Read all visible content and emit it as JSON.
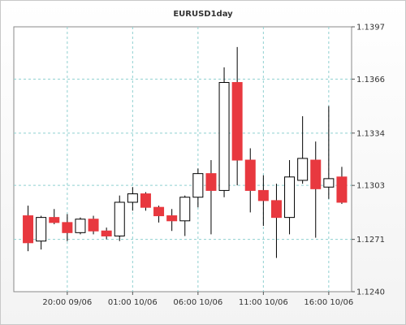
{
  "chart_data": {
    "type": "candlestick",
    "title": "EURUSD1day",
    "up_color": "#ffffff",
    "down_color": "#e8383f",
    "grid_color": "#8fd0d0",
    "grid": true,
    "ylim": [
      1.124,
      1.1397
    ],
    "yticks": [
      "1.1240",
      "1.1271",
      "1.1303",
      "1.1334",
      "1.1366",
      "1.1397"
    ],
    "xticks": [
      {
        "index": 3.5,
        "label": "20:00 09/06"
      },
      {
        "index": 8.5,
        "label": "01:00 10/06"
      },
      {
        "index": 13.5,
        "label": "06:00 10/06"
      },
      {
        "index": 18.5,
        "label": "11:00 10/06"
      },
      {
        "index": 23.5,
        "label": "16:00 10/06"
      }
    ],
    "candles": [
      {
        "o": 1.1285,
        "h": 1.1291,
        "l": 1.1264,
        "c": 1.1269
      },
      {
        "o": 1.127,
        "h": 1.1285,
        "l": 1.1265,
        "c": 1.1284
      },
      {
        "o": 1.1284,
        "h": 1.1289,
        "l": 1.128,
        "c": 1.1281
      },
      {
        "o": 1.1281,
        "h": 1.1286,
        "l": 1.127,
        "c": 1.1275
      },
      {
        "o": 1.1275,
        "h": 1.1284,
        "l": 1.1274,
        "c": 1.1283
      },
      {
        "o": 1.1283,
        "h": 1.1285,
        "l": 1.1274,
        "c": 1.1276
      },
      {
        "o": 1.1276,
        "h": 1.1278,
        "l": 1.1271,
        "c": 1.1273
      },
      {
        "o": 1.1273,
        "h": 1.1297,
        "l": 1.127,
        "c": 1.1293
      },
      {
        "o": 1.1293,
        "h": 1.1302,
        "l": 1.1288,
        "c": 1.1298
      },
      {
        "o": 1.1298,
        "h": 1.1299,
        "l": 1.1288,
        "c": 1.129
      },
      {
        "o": 1.129,
        "h": 1.1291,
        "l": 1.1281,
        "c": 1.1285
      },
      {
        "o": 1.1285,
        "h": 1.1289,
        "l": 1.1276,
        "c": 1.1282
      },
      {
        "o": 1.1282,
        "h": 1.1297,
        "l": 1.1273,
        "c": 1.1296
      },
      {
        "o": 1.1296,
        "h": 1.1313,
        "l": 1.129,
        "c": 1.131
      },
      {
        "o": 1.131,
        "h": 1.1318,
        "l": 1.1274,
        "c": 1.13
      },
      {
        "o": 1.13,
        "h": 1.1373,
        "l": 1.1296,
        "c": 1.1364
      },
      {
        "o": 1.1364,
        "h": 1.1385,
        "l": 1.1303,
        "c": 1.1318
      },
      {
        "o": 1.1318,
        "h": 1.1325,
        "l": 1.1287,
        "c": 1.13
      },
      {
        "o": 1.13,
        "h": 1.1309,
        "l": 1.1279,
        "c": 1.1294
      },
      {
        "o": 1.1294,
        "h": 1.1304,
        "l": 1.126,
        "c": 1.1284
      },
      {
        "o": 1.1284,
        "h": 1.1318,
        "l": 1.1274,
        "c": 1.1308
      },
      {
        "o": 1.1306,
        "h": 1.1344,
        "l": 1.1304,
        "c": 1.1319
      },
      {
        "o": 1.1318,
        "h": 1.1329,
        "l": 1.1272,
        "c": 1.1301
      },
      {
        "o": 1.1302,
        "h": 1.135,
        "l": 1.1295,
        "c": 1.1307
      },
      {
        "o": 1.1308,
        "h": 1.1314,
        "l": 1.1292,
        "c": 1.1293
      }
    ]
  }
}
